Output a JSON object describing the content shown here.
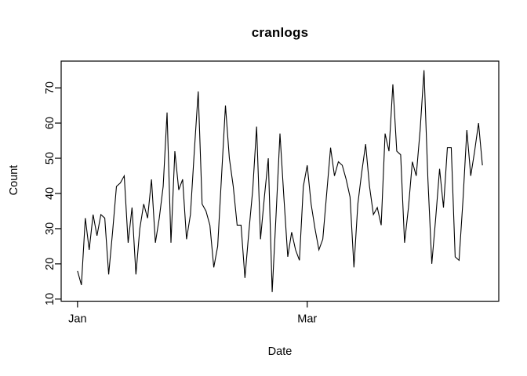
{
  "title": "cranlogs",
  "x_axis": {
    "label": "Date",
    "tick_labels": [
      "Jan",
      "Mar"
    ]
  },
  "y_axis": {
    "label": "Count",
    "tick_labels": [
      "10",
      "20",
      "30",
      "40",
      "50",
      "60",
      "70"
    ]
  },
  "colors": {
    "line": "#000000",
    "axis": "#000000",
    "background": "#ffffff"
  },
  "chart_data": {
    "type": "line",
    "title": "cranlogs",
    "xlabel": "Date",
    "ylabel": "Count",
    "grid": false,
    "legend": "none",
    "x_unit": "days since Jan 1",
    "x_ticks": [
      {
        "label": "Jan",
        "day": 0
      },
      {
        "label": "Mar",
        "day": 59
      }
    ],
    "xlim": [
      -4.2,
      108.2
    ],
    "y_ticks": [
      10,
      20,
      30,
      40,
      50,
      60,
      70
    ],
    "ylim": [
      9.4,
      77.6
    ],
    "values": [
      18,
      14,
      33,
      24,
      34,
      28,
      34,
      33,
      17,
      29,
      42,
      43,
      45,
      26,
      36,
      17,
      30,
      37,
      33,
      44,
      26,
      33,
      42,
      63,
      26,
      52,
      41,
      44,
      27,
      34,
      52,
      69,
      37,
      35,
      31,
      19,
      25,
      45,
      65,
      50,
      42,
      31,
      31,
      16,
      29,
      41,
      59,
      27,
      39,
      50,
      12,
      34,
      57,
      39,
      22,
      29,
      24,
      21,
      42,
      48,
      37,
      30,
      24,
      27,
      40,
      53,
      45,
      49,
      48,
      44,
      39,
      19,
      37,
      46,
      54,
      42,
      34,
      36,
      31,
      57,
      52,
      71,
      52,
      51,
      26,
      36,
      49,
      45,
      58,
      75,
      44,
      20,
      33,
      47,
      36,
      53,
      53,
      22,
      21,
      38,
      58,
      45,
      52,
      60,
      48
    ]
  }
}
